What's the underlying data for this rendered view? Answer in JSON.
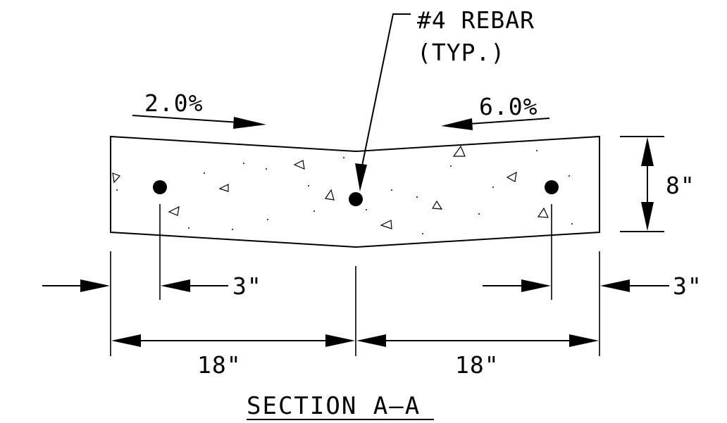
{
  "title": "SECTION A—A",
  "callout": {
    "line1": "#4 REBAR",
    "line2": "(TYP.)"
  },
  "slopes": {
    "left": "2.0%",
    "right": "6.0%"
  },
  "dimensions": {
    "thickness": "8\"",
    "edge_left": "3\"",
    "edge_right": "3\"",
    "width_left": "18\"",
    "width_right": "18\""
  }
}
